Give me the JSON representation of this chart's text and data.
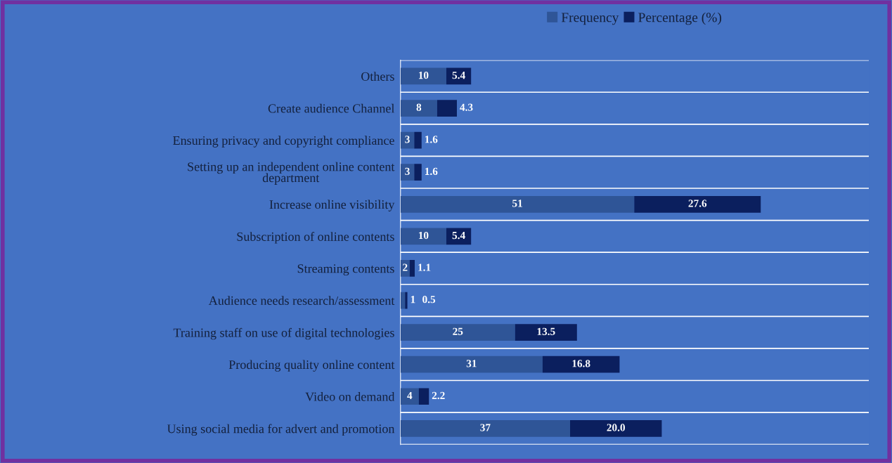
{
  "chart_data": {
    "type": "bar",
    "orientation": "horizontal",
    "stacked": true,
    "categories": [
      "Others",
      "Create audience Channel",
      "Ensuring privacy and copyright compliance",
      "Setting up an independent online content\ndepartment",
      "Increase online visibility",
      "Subscription of online contents",
      "Streaming contents",
      "Audience needs research/assessment",
      "Training staff on use of digital technologies",
      "Producing quality online content",
      "Video on demand",
      "Using social media for advert and promotion"
    ],
    "series": [
      {
        "name": "Frequency",
        "color": "#2f5597",
        "values": [
          10,
          8,
          3,
          3,
          51,
          10,
          2,
          1,
          25,
          31,
          4,
          37
        ],
        "value_labels": [
          "10",
          "8",
          "3",
          "3",
          "51",
          "10",
          "2",
          "1",
          "25",
          "31",
          "4",
          "37"
        ]
      },
      {
        "name": "Percentage (%)",
        "color": "#0b1f5e",
        "values": [
          5.4,
          4.3,
          1.6,
          1.6,
          27.6,
          5.4,
          1.1,
          0.5,
          13.5,
          16.8,
          2.2,
          20.0
        ],
        "value_labels": [
          "5.4",
          "4.3",
          "1.6",
          "1.6",
          "27.6",
          "5.4",
          "1.1",
          "0.5",
          "13.5",
          "16.8",
          "2.2",
          "20.0"
        ]
      }
    ],
    "legend": "top",
    "grid": "y"
  }
}
